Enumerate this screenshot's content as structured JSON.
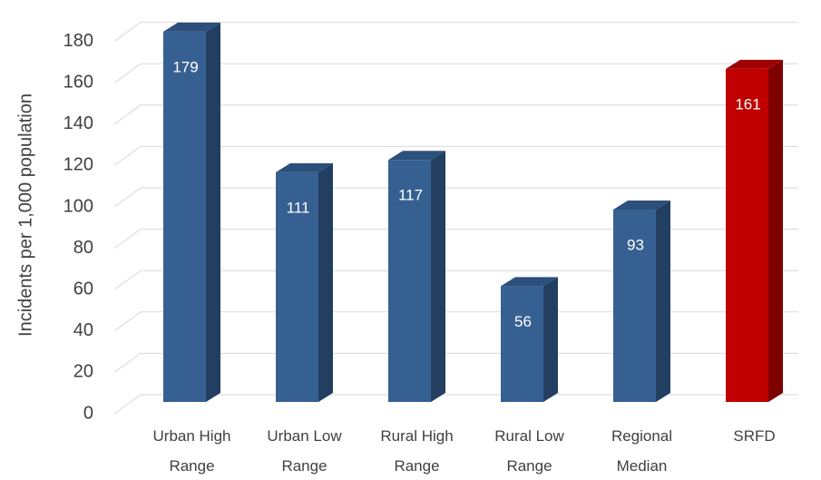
{
  "chart_data": {
    "type": "bar",
    "categories": [
      [
        "Urban High",
        "Range"
      ],
      [
        "Urban Low",
        "Range"
      ],
      [
        "Rural High",
        "Range"
      ],
      [
        "Rural Low",
        "Range"
      ],
      [
        "Regional",
        "Median"
      ],
      [
        "SRFD"
      ]
    ],
    "values": [
      179,
      111,
      117,
      56,
      93,
      161
    ],
    "data_labels": [
      "179",
      "111",
      "117",
      "56",
      "93",
      "161"
    ],
    "title": "",
    "xlabel": "",
    "ylabel": "Incidents per 1,000 population",
    "ylim": [
      0,
      180
    ],
    "yticks": [
      0,
      20,
      40,
      60,
      80,
      100,
      120,
      140,
      160,
      180
    ],
    "grid": true,
    "legend": "none",
    "three_d": true,
    "colors": {
      "default_front": "#376092",
      "default_side": "#223f61",
      "default_top": "#2c4f7c",
      "highlight_front": "#c00000",
      "highlight_side": "#7f0000",
      "highlight_top": "#a00000",
      "grid": "#d9d9d9",
      "text": "#404040"
    },
    "highlight_index": 5
  }
}
